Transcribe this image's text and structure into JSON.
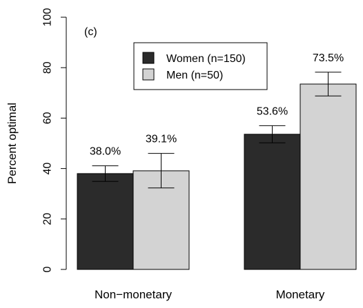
{
  "chart_data": {
    "type": "bar",
    "panel_label": "(c)",
    "ylabel": "Percent optimal",
    "xlabel": "",
    "ylim": [
      0,
      100
    ],
    "yticks": [
      0,
      20,
      40,
      60,
      80,
      100
    ],
    "categories": [
      "Non−monetary",
      "Monetary"
    ],
    "series": [
      {
        "name": "Women (n=150)",
        "color": "#2b2b2b",
        "values": [
          38.0,
          53.6
        ],
        "labels": [
          "38.0%",
          "53.6%"
        ],
        "err_low": [
          34.9,
          50.2
        ],
        "err_high": [
          41.1,
          57.0
        ]
      },
      {
        "name": "Men (n=50)",
        "color": "#d3d3d3",
        "values": [
          39.1,
          73.5
        ],
        "labels": [
          "39.1%",
          "73.5%"
        ],
        "err_low": [
          32.3,
          68.8
        ],
        "err_high": [
          46.0,
          78.2
        ]
      }
    ],
    "legend_position": "top-center"
  }
}
